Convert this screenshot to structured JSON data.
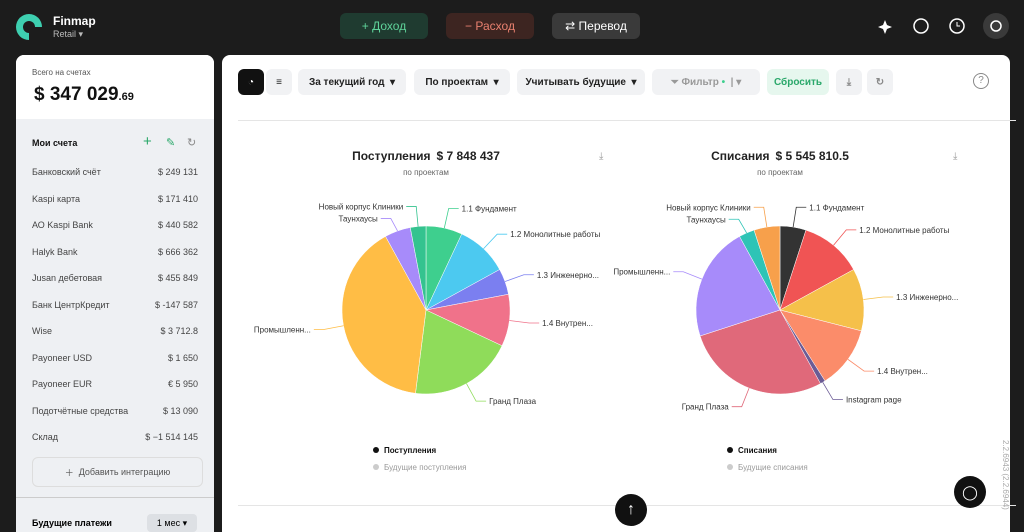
{
  "header": {
    "brand": "Finmap",
    "plan": "Retail",
    "buttons": [
      "+ Доход",
      "− Расход",
      "⇄ Перевод"
    ]
  },
  "sidebar": {
    "balance_label": "Всего на счетах",
    "balance_currency": "$",
    "balance_amount": "347 029",
    "balance_cents": ".69",
    "accounts_title": "Мои счета",
    "accounts": [
      [
        "Банковский счёт",
        "$ 249 131"
      ],
      [
        "Kaspi карта",
        "$ 171 410"
      ],
      [
        "АО Kaspi Bank",
        "$ 440 582"
      ],
      [
        "Halyk Bank",
        "$ 666 362"
      ],
      [
        "Jusan дебетовая",
        "$ 455 849"
      ],
      [
        "Банк ЦентрКредит",
        "$ -147 587"
      ],
      [
        "Wise",
        "$ 3 712.8"
      ],
      [
        "Payoneer USD",
        "$ 1 650"
      ],
      [
        "Payoneer EUR",
        "€ 5 950"
      ],
      [
        "Подотчётные средства",
        "$ 13 090"
      ],
      [
        "Склад",
        "$ −1 514 145"
      ]
    ],
    "add_integration": "Добавить интеграцию",
    "future_payments": "Будущие платежи",
    "period": "1 мес"
  },
  "toolbar": {
    "period": "За текущий год",
    "group": "По проектам",
    "future": "Учитывать будущие",
    "filter": "Фильтр",
    "reset": "Сбросить"
  },
  "charts": [
    {
      "type": "pie",
      "title": "Поступления",
      "total": "$ 7 848 437",
      "subtitle": "по проектам",
      "categories": [
        "1.1 Фундамент",
        "1.2 Монолитные работы",
        "1.3 Инженерно...",
        "1.4 Внутрен...",
        "Гранд Плаза",
        "Промышленн...",
        "Таунхаусы",
        "Новый корпус Клиники"
      ],
      "values": [
        7,
        10,
        5,
        10,
        20,
        40,
        5,
        3
      ],
      "colors": [
        "#3ecf8e",
        "#4cc9f0",
        "#7b7ff0",
        "#f0728a",
        "#8fdc5a",
        "#ffbd45",
        "#a78bfa",
        "#34c38f"
      ],
      "legend": [
        "Поступления",
        "Будущие поступления"
      ]
    },
    {
      "type": "pie",
      "title": "Списания",
      "total": "$ 5 545 810.5",
      "subtitle": "по проектам",
      "categories": [
        "1.1 Фундамент",
        "1.2 Монолитные работы",
        "1.3 Инженерно...",
        "1.4 Внутрен...",
        "Instagram page",
        "Гранд Плаза",
        "Промышленн...",
        "Таунхаусы",
        "Новый корпус Клиники"
      ],
      "values": [
        5,
        12,
        12,
        12,
        1,
        28,
        22,
        3,
        5
      ],
      "colors": [
        "#333333",
        "#f05454",
        "#f5c04a",
        "#fb8c6a",
        "#6b5b95",
        "#e0697a",
        "#a78bfa",
        "#2ec4b6",
        "#f7a04b"
      ],
      "legend": [
        "Списания",
        "Будущие списания"
      ]
    }
  ],
  "version": "2.2.6943 (2.2.6944)"
}
